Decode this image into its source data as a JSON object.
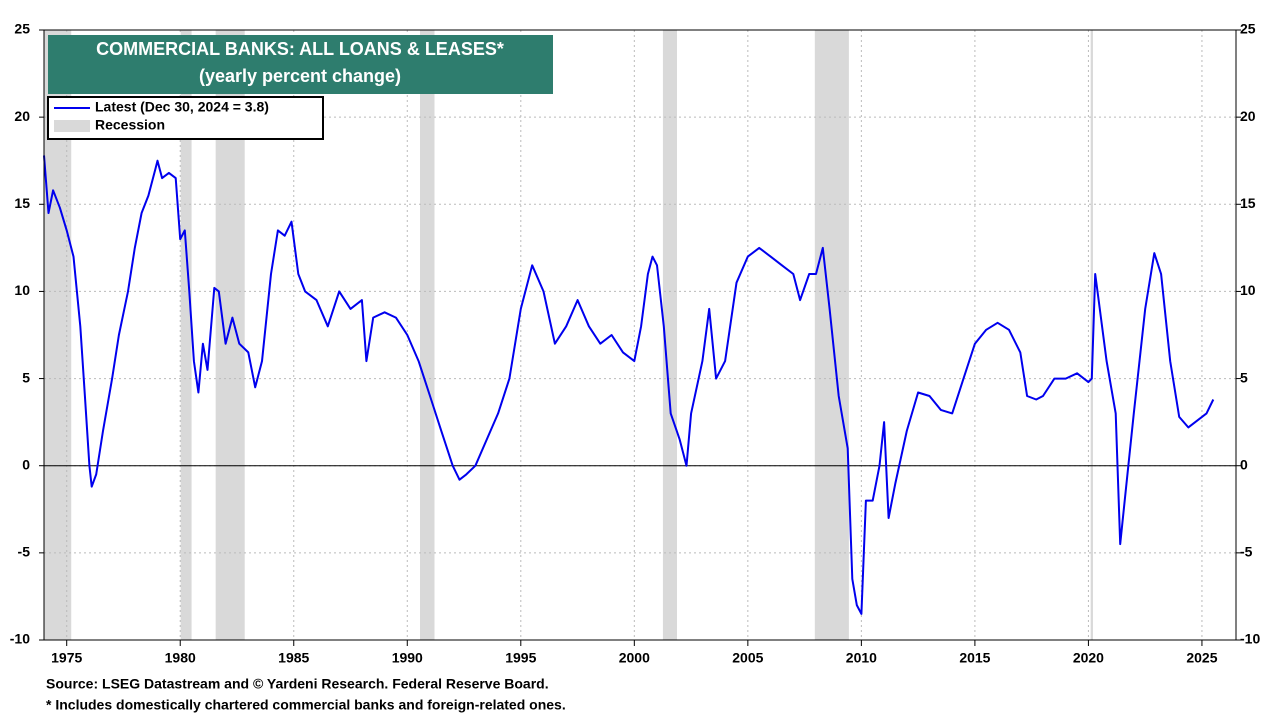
{
  "chart_data": {
    "type": "line",
    "title": "COMMERCIAL BANKS: ALL LOANS & LEASES*",
    "subtitle": "(yearly percent change)",
    "source": "Source: LSEG Datastream and © Yardeni Research. Federal Reserve Board.",
    "footnote": "* Includes domestically chartered commercial banks and foreign-related ones.",
    "xlim": [
      1974,
      2026.5
    ],
    "xticks": [
      1975,
      1980,
      1985,
      1990,
      1995,
      2000,
      2005,
      2010,
      2015,
      2020,
      2025
    ],
    "ylim": [
      -10,
      25
    ],
    "yticks": [
      -10,
      -5,
      0,
      5,
      10,
      15,
      20,
      25
    ],
    "grid": true,
    "recession_name": "Recession",
    "recession_color": "#d9d9d9",
    "recessions": [
      [
        1974.0,
        1975.2
      ],
      [
        1980.02,
        1980.5
      ],
      [
        1981.56,
        1982.84
      ],
      [
        1990.56,
        1991.2
      ],
      [
        2001.26,
        2001.88
      ],
      [
        2007.95,
        2009.45
      ],
      [
        2020.1,
        2020.2
      ]
    ],
    "series": [
      {
        "name": "Latest (Dec 30, 2024 = 3.8)",
        "color": "#0000ee",
        "x": [
          1974.0,
          1974.2,
          1974.4,
          1974.7,
          1975.0,
          1975.3,
          1975.6,
          1975.8,
          1976.0,
          1976.1,
          1976.3,
          1976.6,
          1977.0,
          1977.3,
          1977.7,
          1978.0,
          1978.3,
          1978.6,
          1978.9,
          1979.0,
          1979.2,
          1979.5,
          1979.8,
          1980.0,
          1980.2,
          1980.4,
          1980.6,
          1980.8,
          1981.0,
          1981.2,
          1981.5,
          1981.7,
          1982.0,
          1982.3,
          1982.6,
          1983.0,
          1983.3,
          1983.6,
          1984.0,
          1984.3,
          1984.6,
          1984.9,
          1985.2,
          1985.5,
          1986.0,
          1986.5,
          1987.0,
          1987.5,
          1988.0,
          1988.2,
          1988.5,
          1989.0,
          1989.5,
          1990.0,
          1990.5,
          1991.0,
          1991.5,
          1992.0,
          1992.3,
          1992.6,
          1993.0,
          1993.5,
          1994.0,
          1994.5,
          1995.0,
          1995.5,
          1996.0,
          1996.5,
          1997.0,
          1997.5,
          1998.0,
          1998.5,
          1999.0,
          1999.5,
          2000.0,
          2000.3,
          2000.6,
          2000.8,
          2001.0,
          2001.3,
          2001.6,
          2002.0,
          2002.3,
          2002.5,
          2003.0,
          2003.3,
          2003.6,
          2004.0,
          2004.5,
          2005.0,
          2005.5,
          2006.0,
          2006.5,
          2007.0,
          2007.3,
          2007.7,
          2008.0,
          2008.3,
          2008.6,
          2009.0,
          2009.4,
          2009.6,
          2009.8,
          2010.0,
          2010.2,
          2010.5,
          2010.8,
          2011.0,
          2011.2,
          2011.5,
          2012.0,
          2012.5,
          2013.0,
          2013.5,
          2014.0,
          2014.5,
          2015.0,
          2015.5,
          2016.0,
          2016.5,
          2017.0,
          2017.3,
          2017.7,
          2018.0,
          2018.5,
          2019.0,
          2019.5,
          2020.0,
          2020.15,
          2020.3,
          2020.4,
          2020.8,
          2021.2,
          2021.4,
          2021.6,
          2022.0,
          2022.5,
          2022.9,
          2023.2,
          2023.6,
          2024.0,
          2024.4,
          2024.8,
          2025.2,
          2025.5
        ],
        "values": [
          17.8,
          14.5,
          15.8,
          14.8,
          13.5,
          12,
          8,
          4,
          0,
          -1.2,
          -0.5,
          2,
          5,
          7.5,
          10,
          12.5,
          14.5,
          15.5,
          17,
          17.5,
          16.5,
          16.8,
          16.5,
          13,
          13.5,
          10,
          6,
          4.2,
          7,
          5.5,
          10.2,
          10,
          7,
          8.5,
          7,
          6.5,
          4.5,
          6,
          11,
          13.5,
          13.2,
          14,
          11,
          10,
          9.5,
          8,
          10,
          9,
          9.5,
          6,
          8.5,
          8.8,
          8.5,
          7.5,
          6,
          4,
          2,
          0,
          -0.8,
          -0.5,
          0,
          1.5,
          3,
          5,
          9,
          11.5,
          10,
          7,
          8,
          9.5,
          8,
          7,
          7.5,
          6.5,
          6,
          8,
          11,
          12,
          11.5,
          8,
          3,
          1.5,
          0,
          3,
          6,
          9,
          5,
          6,
          10.5,
          12,
          12.5,
          12,
          11.5,
          11,
          9.5,
          11,
          11,
          12.5,
          9,
          4,
          1,
          -6.5,
          -8,
          -8.5,
          -2,
          -2,
          0,
          2.5,
          -3,
          -1,
          2,
          4.2,
          4,
          3.2,
          3,
          5,
          7,
          7.8,
          8.2,
          7.8,
          6.5,
          4,
          3.8,
          4,
          5,
          5,
          5.3,
          4.8,
          5,
          11,
          10,
          6,
          3,
          -4.5,
          -2,
          3,
          9,
          12.2,
          11,
          6,
          2.8,
          2.2,
          2.6,
          3,
          3.8
        ]
      }
    ]
  }
}
